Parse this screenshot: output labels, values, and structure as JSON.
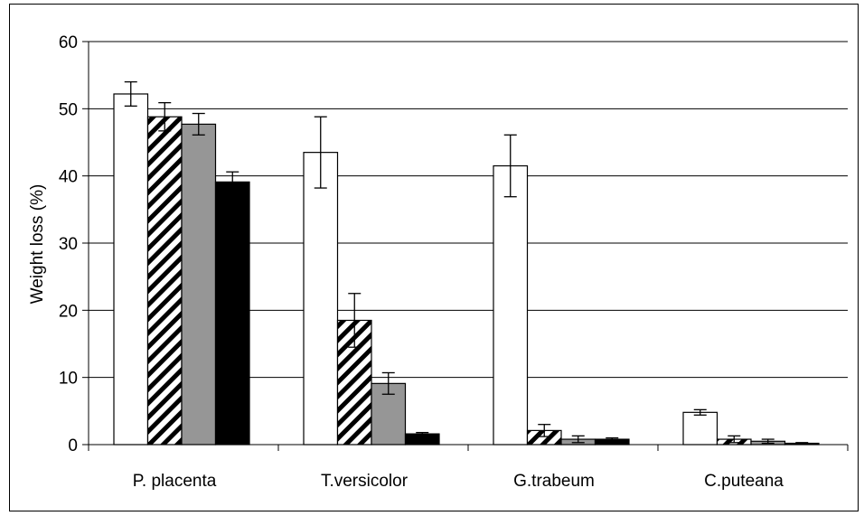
{
  "chart_data": {
    "type": "bar",
    "title": "",
    "xlabel": "",
    "ylabel": "Weight loss (%)",
    "ylim": [
      0,
      60
    ],
    "yticks": [
      "0",
      "10",
      "20",
      "30",
      "40",
      "50",
      "60"
    ],
    "grid": true,
    "legend": "none",
    "categories": [
      "P. placenta",
      "T.versicolor",
      "G.trabeum",
      "C.puteana"
    ],
    "series": [
      {
        "style": "white",
        "fill": "#ffffff",
        "values": [
          52.2,
          43.5,
          41.5,
          4.8
        ],
        "errors": [
          1.8,
          5.3,
          4.6,
          0.4
        ]
      },
      {
        "style": "hatched",
        "fill": "#ffffff",
        "values": [
          48.8,
          18.5,
          2.1,
          0.8
        ],
        "errors": [
          2.1,
          4.0,
          0.9,
          0.5
        ]
      },
      {
        "style": "gray",
        "fill": "#969696",
        "values": [
          47.7,
          9.1,
          0.8,
          0.5
        ],
        "errors": [
          1.6,
          1.6,
          0.5,
          0.3
        ]
      },
      {
        "style": "black",
        "fill": "#000000",
        "values": [
          39.1,
          1.6,
          0.8,
          0.2
        ],
        "errors": [
          1.5,
          0.2,
          0.2,
          0.1
        ]
      }
    ]
  }
}
